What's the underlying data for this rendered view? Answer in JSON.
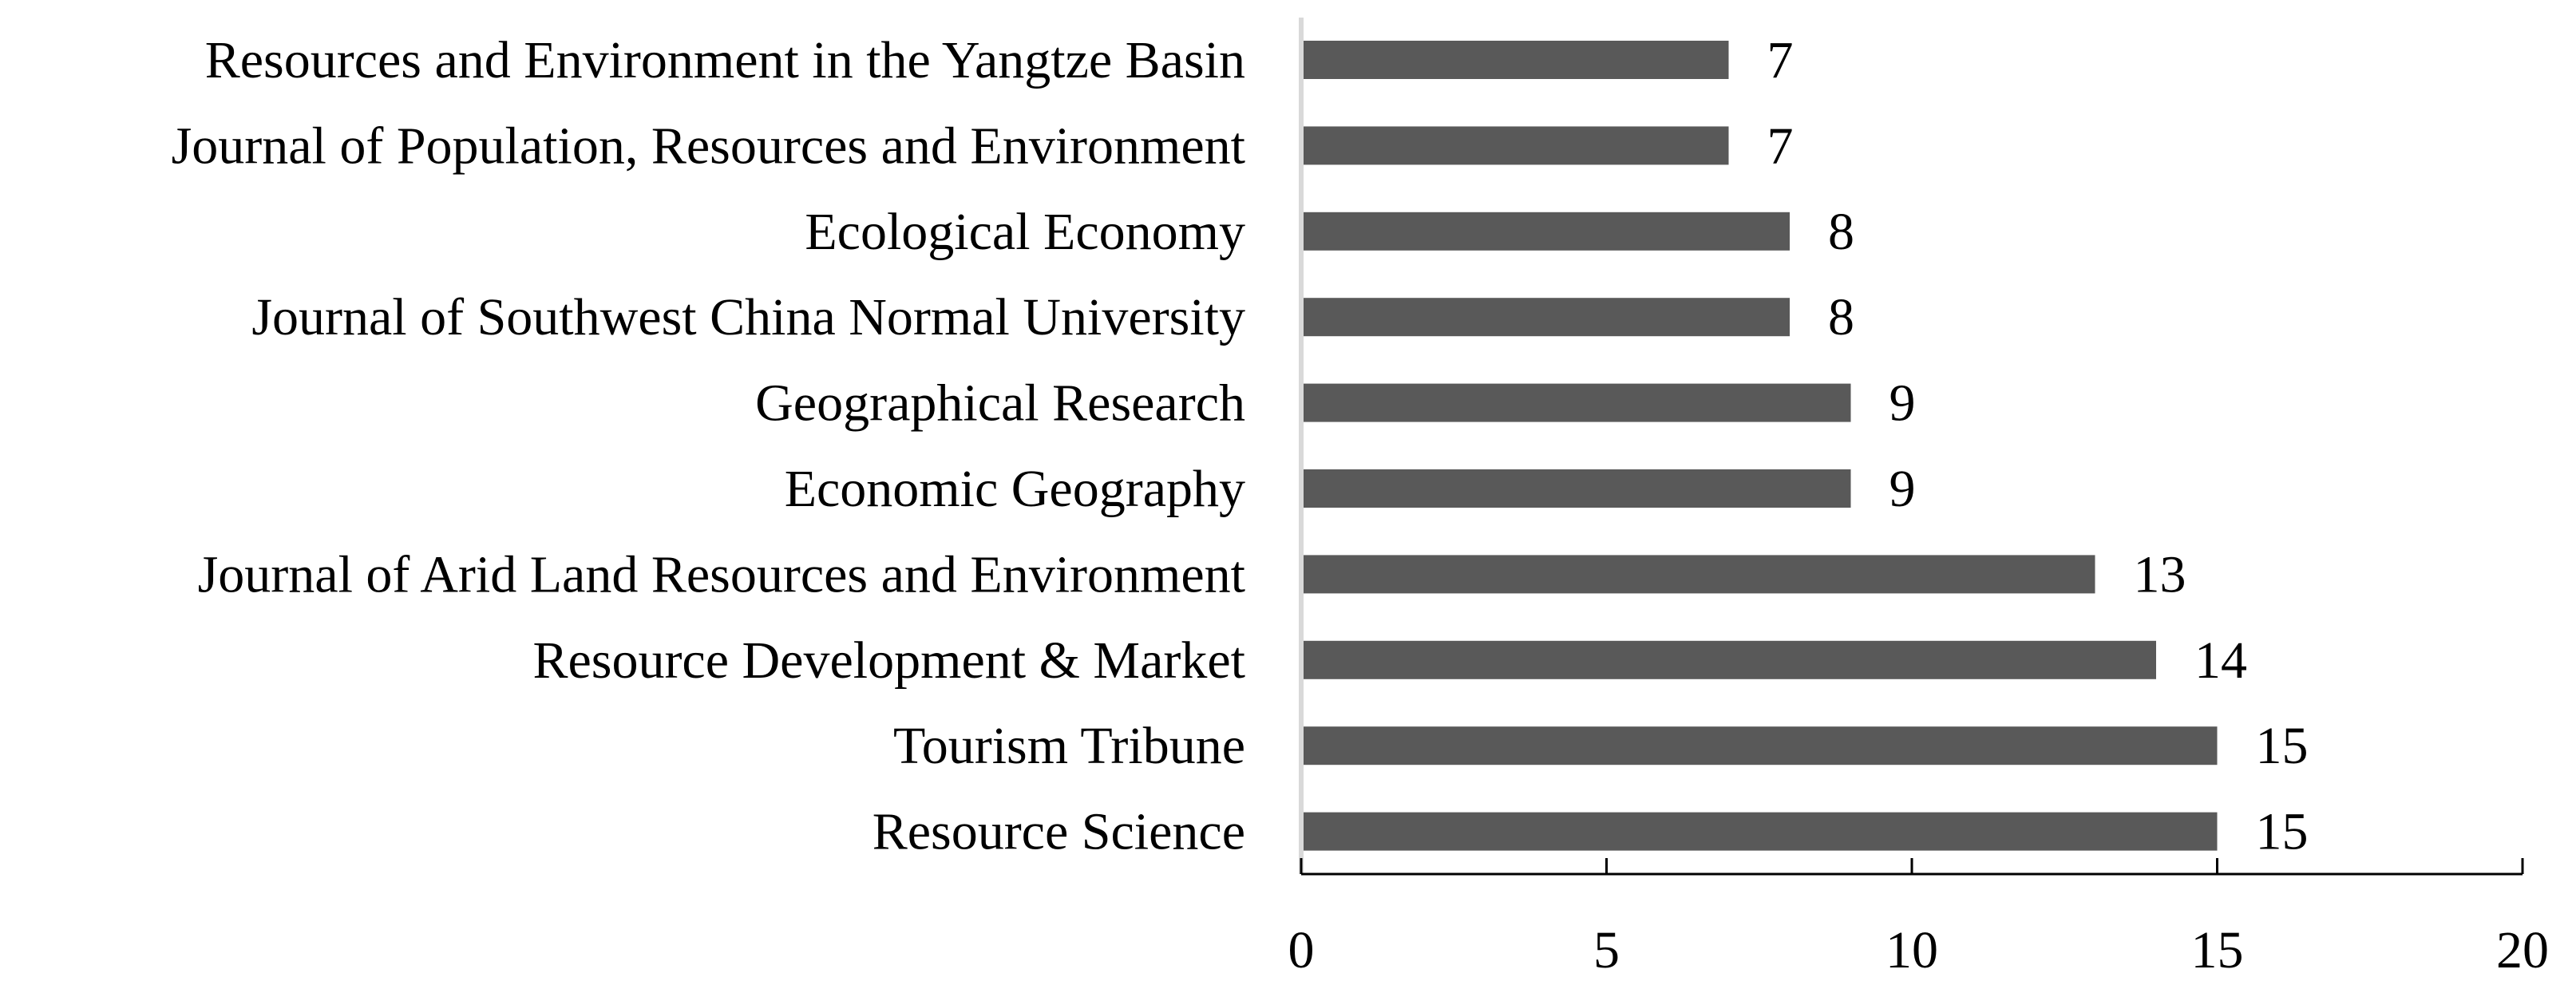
{
  "chart_data": {
    "type": "bar",
    "orientation": "horizontal",
    "title": "",
    "xlabel": "",
    "ylabel": "",
    "categories": [
      "Resources and Environment in the Yangtze Basin",
      "Journal of Population, Resources and Environment",
      "Ecological Economy",
      "Journal of Southwest China Normal University",
      "Geographical Research",
      "Economic Geography",
      "Journal of Arid Land Resources and Environment",
      "Resource Development & Market",
      "Tourism Tribune",
      "Resource Science"
    ],
    "values": [
      7,
      7,
      8,
      8,
      9,
      9,
      13,
      14,
      15,
      15
    ],
    "data_labels": [
      "7",
      "7",
      "8",
      "8",
      "9",
      "9",
      "13",
      "14",
      "15",
      "15"
    ],
    "xlim": [
      0,
      20
    ],
    "x_ticks": [
      0,
      5,
      10,
      15,
      20
    ],
    "x_tick_labels": [
      "0",
      "5",
      "10",
      "15",
      "20"
    ],
    "grid": false,
    "legend": "none",
    "colors": {
      "bar": "#595959",
      "axis": "#000000",
      "category_axis": "#d9d9d9",
      "text": "#000000",
      "background": "#ffffff"
    }
  }
}
